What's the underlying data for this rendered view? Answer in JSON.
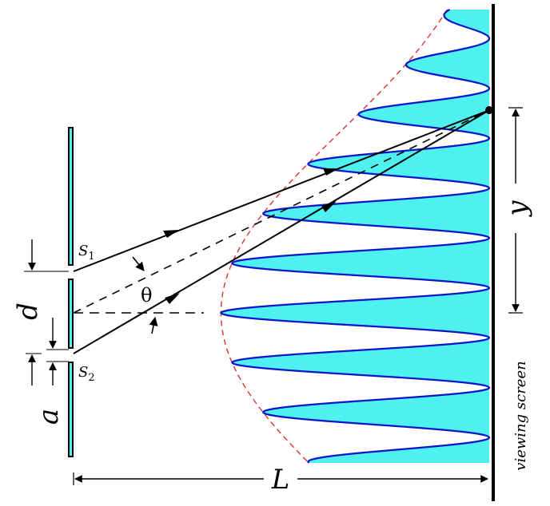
{
  "labels": {
    "s1": "S",
    "s1_sub": "1",
    "s2": "S",
    "s2_sub": "2",
    "d": "d",
    "a": "a",
    "theta": "θ",
    "y": "y",
    "L": "L",
    "screen": "viewing screen"
  },
  "colors": {
    "slit_fill": "#4ff0f0",
    "pattern_fill": "#4ff0f0",
    "pattern_line": "#0a14c8",
    "envelope": "#e03030",
    "lines": "#000000"
  }
}
